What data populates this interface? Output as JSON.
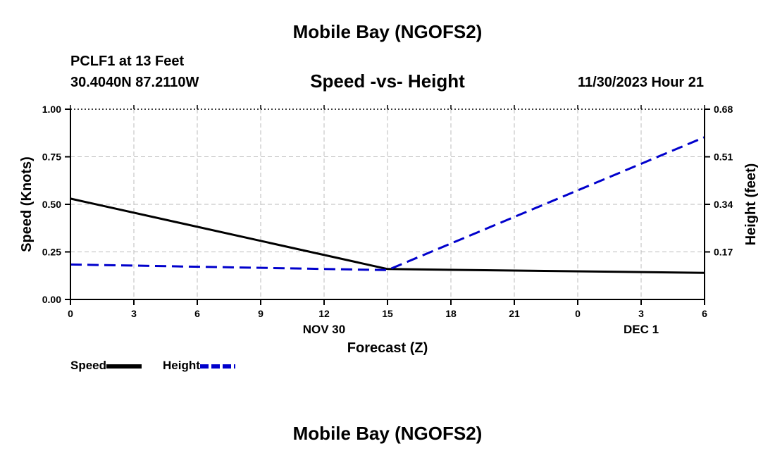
{
  "header": {
    "title": "Mobile Bay (NGOFS2)",
    "station": "PCLF1 at 13 Feet",
    "coords": "30.4040N  87.2110W",
    "subtitle": "Speed -vs- Height",
    "datetime": "11/30/2023 Hour 21",
    "bottom_title": "Mobile Bay (NGOFS2)"
  },
  "colors": {
    "speed": "#000000",
    "height": "#0000cc",
    "grid": "#bbbbbb"
  },
  "chart_data": {
    "type": "line",
    "title": "Speed -vs- Height",
    "xlabel": "Forecast (Z)",
    "ylabel": "Speed (Knots)",
    "y2label": "Height (feet)",
    "x_tick_labels": [
      "0",
      "3",
      "6",
      "9",
      "12",
      "15",
      "18",
      "21",
      "0",
      "3",
      "6"
    ],
    "x_date_labels": [
      {
        "label": "NOV 30",
        "at_index": 4
      },
      {
        "label": "DEC 1",
        "at_index": 9
      }
    ],
    "xlim": [
      0,
      30
    ],
    "ylim": [
      0,
      1.0
    ],
    "y_ticks": [
      "0.00",
      "0.25",
      "0.50",
      "0.75",
      "1.00"
    ],
    "y2lim": [
      0,
      0.68
    ],
    "y2_ticks": [
      "0.17",
      "0.34",
      "0.51",
      "0.68"
    ],
    "grid": true,
    "legend_position": "bottom-left",
    "series": [
      {
        "name": "Speed",
        "axis": "left",
        "style": "solid",
        "x": [
          0,
          15,
          30
        ],
        "values": [
          0.53,
          0.16,
          0.14
        ]
      },
      {
        "name": "Height",
        "axis": "right",
        "style": "dashed",
        "x": [
          0,
          15,
          30
        ],
        "values": [
          0.125,
          0.105,
          0.58
        ]
      }
    ]
  }
}
